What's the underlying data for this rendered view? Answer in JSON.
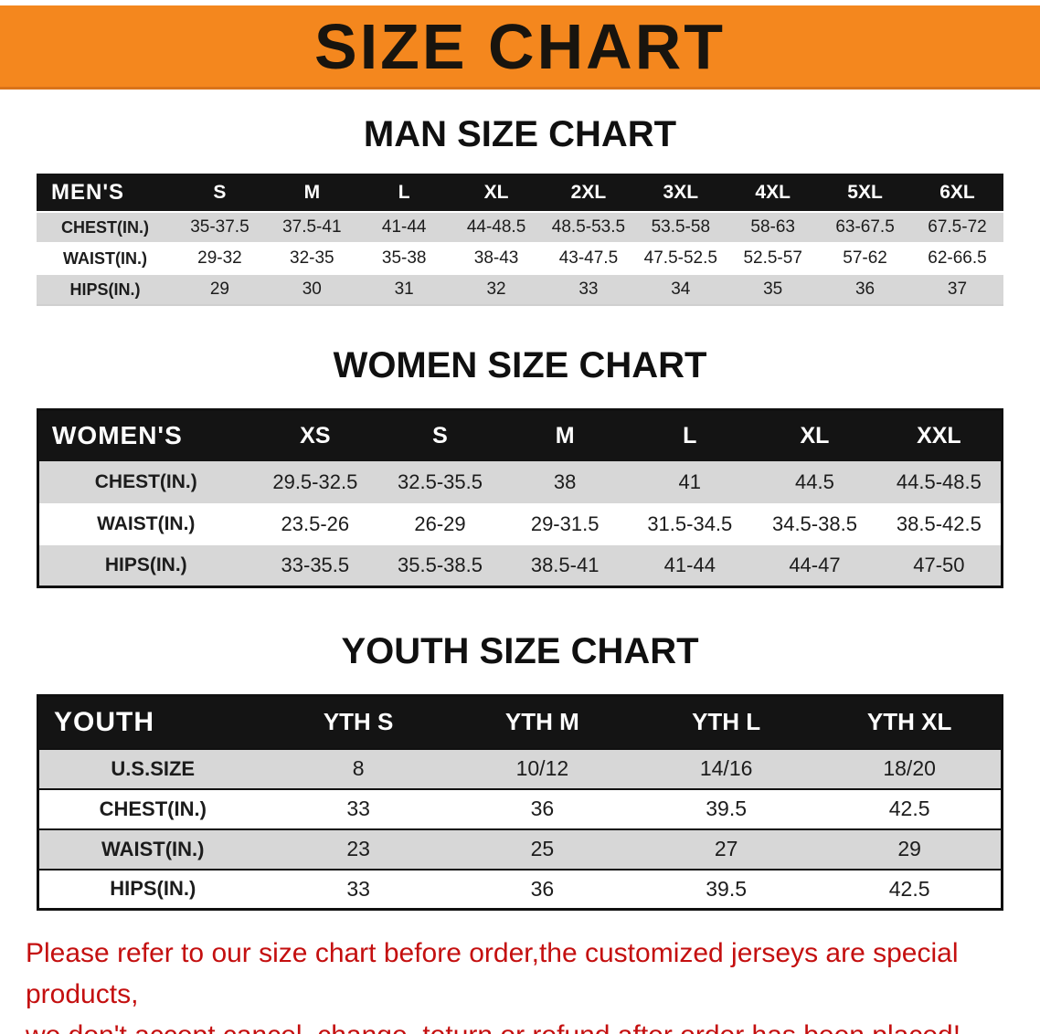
{
  "banner": {
    "title": "SIZE CHART"
  },
  "colors": {
    "banner_bg": "#F4871E",
    "table_header_bg": "#141414",
    "row_stripe": "#D7D7D7",
    "disclaimer_red": "#C40F0F"
  },
  "men": {
    "heading": "MAN SIZE CHART",
    "header": [
      "MEN'S",
      "S",
      "M",
      "L",
      "XL",
      "2XL",
      "3XL",
      "4XL",
      "5XL",
      "6XL"
    ],
    "rows": [
      {
        "label": "CHEST(IN.)",
        "values": [
          "35-37.5",
          "37.5-41",
          "41-44",
          "44-48.5",
          "48.5-53.5",
          "53.5-58",
          "58-63",
          "63-67.5",
          "67.5-72"
        ]
      },
      {
        "label": "WAIST(IN.)",
        "values": [
          "29-32",
          "32-35",
          "35-38",
          "38-43",
          "43-47.5",
          "47.5-52.5",
          "52.5-57",
          "57-62",
          "62-66.5"
        ]
      },
      {
        "label": "HIPS(IN.)",
        "values": [
          "29",
          "30",
          "31",
          "32",
          "33",
          "34",
          "35",
          "36",
          "37"
        ]
      }
    ]
  },
  "women": {
    "heading": "WOMEN SIZE CHART",
    "header": [
      "WOMEN'S",
      "XS",
      "S",
      "M",
      "L",
      "XL",
      "XXL"
    ],
    "rows": [
      {
        "label": "CHEST(IN.)",
        "values": [
          "29.5-32.5",
          "32.5-35.5",
          "38",
          "41",
          "44.5",
          "44.5-48.5"
        ]
      },
      {
        "label": "WAIST(IN.)",
        "values": [
          "23.5-26",
          "26-29",
          "29-31.5",
          "31.5-34.5",
          "34.5-38.5",
          "38.5-42.5"
        ]
      },
      {
        "label": "HIPS(IN.)",
        "values": [
          "33-35.5",
          "35.5-38.5",
          "38.5-41",
          "41-44",
          "44-47",
          "47-50"
        ]
      }
    ]
  },
  "youth": {
    "heading": "YOUTH SIZE CHART",
    "header": [
      "YOUTH",
      "YTH S",
      "YTH M",
      "YTH L",
      "YTH XL"
    ],
    "rows": [
      {
        "label": "U.S.SIZE",
        "values": [
          "8",
          "10/12",
          "14/16",
          "18/20"
        ]
      },
      {
        "label": "CHEST(IN.)",
        "values": [
          "33",
          "36",
          "39.5",
          "42.5"
        ]
      },
      {
        "label": "WAIST(IN.)",
        "values": [
          "23",
          "25",
          "27",
          "29"
        ]
      },
      {
        "label": "HIPS(IN.)",
        "values": [
          "33",
          "36",
          "39.5",
          "42.5"
        ]
      }
    ]
  },
  "footer": {
    "line1": "Please refer to our size chart before order,the customized jerseys are special products,",
    "line2": "we don't accept cancel, change, teturn or refund after order has been placed!"
  }
}
